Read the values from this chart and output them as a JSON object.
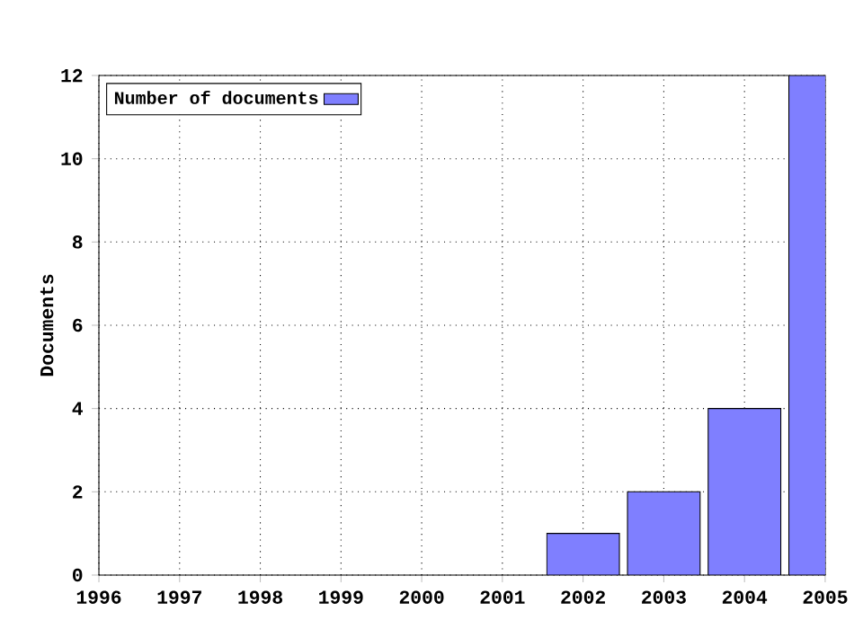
{
  "chart_data": {
    "type": "bar",
    "xlabel": null,
    "ylabel": "Documents",
    "x": [
      2002,
      2003,
      2004,
      2005
    ],
    "series": [
      {
        "name": "Number of documents",
        "color": "#7f7fff",
        "values": [
          1,
          2,
          4,
          12
        ]
      }
    ],
    "xlim": [
      1996,
      2005
    ],
    "xticks": [
      1996,
      1997,
      1998,
      1999,
      2000,
      2001,
      2002,
      2003,
      2004,
      2005
    ],
    "ylim": [
      0,
      12
    ],
    "yticks": [
      0,
      2,
      4,
      6,
      8,
      10,
      12
    ],
    "grid": true,
    "legend": "top left"
  }
}
